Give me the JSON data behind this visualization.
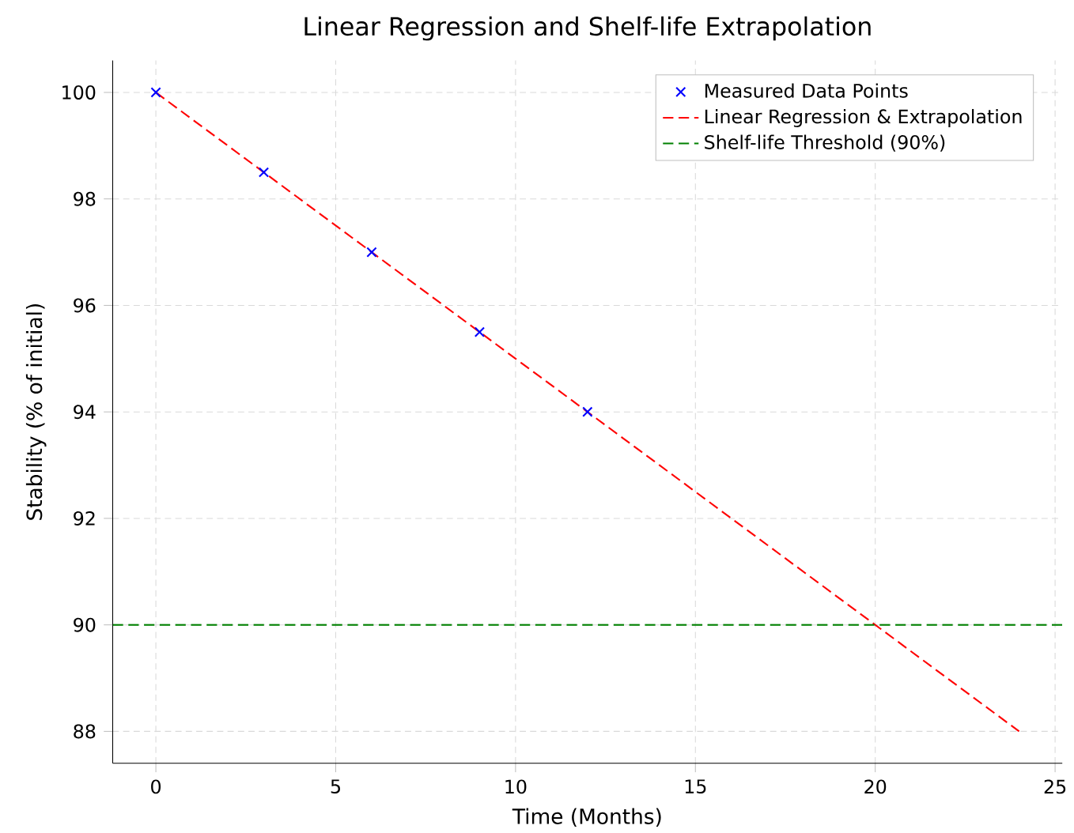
{
  "chart_data": {
    "type": "scatter",
    "title": "Linear Regression and Shelf-life Extrapolation",
    "xlabel": "Time (Months)",
    "ylabel": "Stability (% of initial)",
    "xlim": [
      -1.2,
      25.2
    ],
    "ylim": [
      87.4,
      100.6
    ],
    "xticks": [
      0,
      5,
      10,
      15,
      20,
      25
    ],
    "yticks": [
      88,
      90,
      92,
      94,
      96,
      98,
      100
    ],
    "grid": true,
    "legend": "top right",
    "series": [
      {
        "name": "Measured Data Points",
        "color": "#0000ff",
        "marker": "cross",
        "x": [
          0,
          3,
          6,
          9,
          12
        ],
        "values": [
          100,
          98.5,
          97,
          95.5,
          94
        ]
      },
      {
        "name": "Linear Regression & Extrapolation",
        "type": "line",
        "color": "#ff0000",
        "line_style": "dashed",
        "x": [
          0,
          24
        ],
        "values": [
          100,
          88
        ]
      }
    ],
    "ref_lines": [
      {
        "axis": "y",
        "value": 90,
        "label": "Shelf-life Threshold (90%)",
        "color": "#008000",
        "line_style": "dashed"
      }
    ]
  }
}
